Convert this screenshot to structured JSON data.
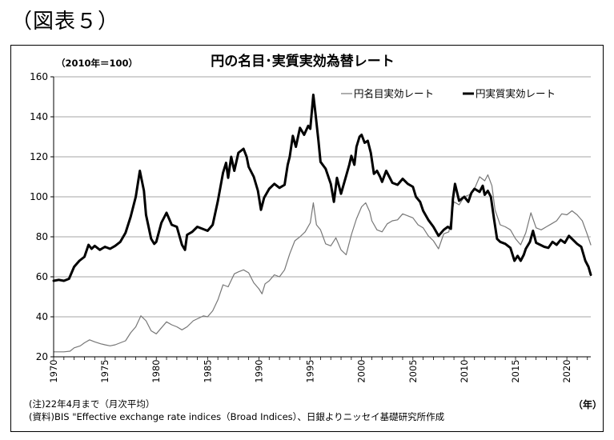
{
  "figure_label": "（図表５）",
  "notes": [
    "(注)22年4月まで（月次平均）",
    "(資料)BIS \"Effective exchange rate indices（Broad Indices）、日銀よりニッセイ基礎研究所作成"
  ],
  "chart_data": {
    "type": "line",
    "title": "円の名目･実質実効為替レート",
    "subtitle": "（2010年＝100）",
    "xlabel": "（年）",
    "ylabel": "",
    "xlim": [
      1970,
      2022.33
    ],
    "ylim": [
      20,
      160
    ],
    "x_ticks": [
      1970,
      1975,
      1980,
      1985,
      1990,
      1995,
      2000,
      2005,
      2010,
      2015,
      2020
    ],
    "y_ticks": [
      20,
      40,
      60,
      80,
      100,
      120,
      140,
      160
    ],
    "grid": "horizontal",
    "legend_position": "top-right",
    "series": [
      {
        "name": "円名目実効レート",
        "color": "#777777",
        "width": 1.2,
        "points": [
          [
            1970.0,
            22.5
          ],
          [
            1971.0,
            22.5
          ],
          [
            1971.6,
            22.8
          ],
          [
            1972.0,
            24.5
          ],
          [
            1972.6,
            25.5
          ],
          [
            1973.0,
            27.0
          ],
          [
            1973.5,
            28.5
          ],
          [
            1974.0,
            27.5
          ],
          [
            1974.6,
            26.5
          ],
          [
            1975.0,
            26.0
          ],
          [
            1975.5,
            25.5
          ],
          [
            1976.0,
            26.0
          ],
          [
            1976.5,
            27.0
          ],
          [
            1977.0,
            28.0
          ],
          [
            1977.5,
            32.0
          ],
          [
            1978.0,
            35.0
          ],
          [
            1978.5,
            40.5
          ],
          [
            1979.0,
            38.0
          ],
          [
            1979.5,
            33.0
          ],
          [
            1980.0,
            31.5
          ],
          [
            1980.5,
            34.5
          ],
          [
            1981.0,
            37.5
          ],
          [
            1981.5,
            36.0
          ],
          [
            1982.0,
            35.0
          ],
          [
            1982.5,
            33.5
          ],
          [
            1983.0,
            35.0
          ],
          [
            1983.6,
            38.0
          ],
          [
            1984.0,
            39.0
          ],
          [
            1984.6,
            40.5
          ],
          [
            1985.0,
            40.0
          ],
          [
            1985.5,
            43.0
          ],
          [
            1986.0,
            48.5
          ],
          [
            1986.5,
            56.0
          ],
          [
            1987.0,
            55.0
          ],
          [
            1987.6,
            61.5
          ],
          [
            1988.0,
            62.5
          ],
          [
            1988.5,
            63.5
          ],
          [
            1989.0,
            62.0
          ],
          [
            1989.5,
            57.0
          ],
          [
            1990.0,
            54.0
          ],
          [
            1990.3,
            51.5
          ],
          [
            1990.6,
            56.5
          ],
          [
            1991.0,
            58.0
          ],
          [
            1991.5,
            61.0
          ],
          [
            1992.0,
            60.0
          ],
          [
            1992.5,
            63.5
          ],
          [
            1993.0,
            71.5
          ],
          [
            1993.5,
            78.0
          ],
          [
            1994.0,
            80.0
          ],
          [
            1994.5,
            82.5
          ],
          [
            1995.0,
            87.0
          ],
          [
            1995.3,
            97.0
          ],
          [
            1995.6,
            86.0
          ],
          [
            1996.0,
            83.5
          ],
          [
            1996.5,
            76.5
          ],
          [
            1997.0,
            75.5
          ],
          [
            1997.5,
            79.5
          ],
          [
            1998.0,
            73.5
          ],
          [
            1998.5,
            71.0
          ],
          [
            1999.0,
            81.0
          ],
          [
            1999.5,
            89.0
          ],
          [
            2000.0,
            95.0
          ],
          [
            2000.4,
            97.0
          ],
          [
            2000.8,
            92.5
          ],
          [
            2001.0,
            88.0
          ],
          [
            2001.5,
            83.5
          ],
          [
            2002.0,
            82.5
          ],
          [
            2002.5,
            86.5
          ],
          [
            2003.0,
            88.0
          ],
          [
            2003.5,
            88.5
          ],
          [
            2004.0,
            91.5
          ],
          [
            2004.5,
            90.5
          ],
          [
            2005.0,
            89.5
          ],
          [
            2005.5,
            86.0
          ],
          [
            2006.0,
            84.5
          ],
          [
            2006.5,
            80.5
          ],
          [
            2007.0,
            78.0
          ],
          [
            2007.5,
            74.0
          ],
          [
            2008.0,
            81.5
          ],
          [
            2008.5,
            82.5
          ],
          [
            2009.0,
            97.5
          ],
          [
            2009.5,
            96.0
          ],
          [
            2010.0,
            100.0
          ],
          [
            2010.5,
            101.0
          ],
          [
            2011.0,
            104.0
          ],
          [
            2011.5,
            110.0
          ],
          [
            2012.0,
            108.0
          ],
          [
            2012.3,
            111.0
          ],
          [
            2012.7,
            105.5
          ],
          [
            2013.0,
            93.5
          ],
          [
            2013.5,
            86.0
          ],
          [
            2014.0,
            85.0
          ],
          [
            2014.5,
            83.5
          ],
          [
            2015.0,
            79.0
          ],
          [
            2015.5,
            76.0
          ],
          [
            2016.0,
            82.0
          ],
          [
            2016.5,
            92.0
          ],
          [
            2017.0,
            84.5
          ],
          [
            2017.5,
            83.5
          ],
          [
            2018.0,
            85.0
          ],
          [
            2018.5,
            86.5
          ],
          [
            2019.0,
            88.0
          ],
          [
            2019.5,
            91.5
          ],
          [
            2020.0,
            91.0
          ],
          [
            2020.5,
            93.0
          ],
          [
            2021.0,
            91.0
          ],
          [
            2021.5,
            88.0
          ],
          [
            2022.0,
            81.0
          ],
          [
            2022.33,
            76.0
          ]
        ]
      },
      {
        "name": "円実質実効レート",
        "color": "#000000",
        "width": 3,
        "points": [
          [
            1970.0,
            58.0
          ],
          [
            1970.5,
            58.5
          ],
          [
            1971.0,
            58.0
          ],
          [
            1971.5,
            59.0
          ],
          [
            1972.0,
            65.0
          ],
          [
            1972.5,
            68.0
          ],
          [
            1973.0,
            70.0
          ],
          [
            1973.4,
            76.0
          ],
          [
            1973.7,
            74.0
          ],
          [
            1974.0,
            75.5
          ],
          [
            1974.5,
            73.5
          ],
          [
            1975.0,
            75.0
          ],
          [
            1975.5,
            74.0
          ],
          [
            1976.0,
            75.5
          ],
          [
            1976.5,
            77.5
          ],
          [
            1977.0,
            82.0
          ],
          [
            1977.5,
            90.0
          ],
          [
            1978.0,
            100.0
          ],
          [
            1978.4,
            113.0
          ],
          [
            1978.8,
            103.0
          ],
          [
            1979.0,
            91.0
          ],
          [
            1979.5,
            79.0
          ],
          [
            1979.8,
            76.5
          ],
          [
            1980.0,
            77.5
          ],
          [
            1980.5,
            87.0
          ],
          [
            1981.0,
            92.0
          ],
          [
            1981.5,
            86.0
          ],
          [
            1982.0,
            85.0
          ],
          [
            1982.5,
            76.0
          ],
          [
            1982.8,
            73.5
          ],
          [
            1983.0,
            81.0
          ],
          [
            1983.5,
            82.5
          ],
          [
            1984.0,
            85.0
          ],
          [
            1984.5,
            84.0
          ],
          [
            1985.0,
            83.0
          ],
          [
            1985.5,
            86.0
          ],
          [
            1986.0,
            98.0
          ],
          [
            1986.5,
            112.0
          ],
          [
            1986.8,
            117.0
          ],
          [
            1987.0,
            109.5
          ],
          [
            1987.3,
            120.0
          ],
          [
            1987.6,
            113.0
          ],
          [
            1988.0,
            122.0
          ],
          [
            1988.5,
            124.0
          ],
          [
            1988.8,
            120.0
          ],
          [
            1989.0,
            115.0
          ],
          [
            1989.5,
            110.0
          ],
          [
            1989.9,
            103.0
          ],
          [
            1990.2,
            93.5
          ],
          [
            1990.5,
            99.5
          ],
          [
            1991.0,
            104.0
          ],
          [
            1991.5,
            106.5
          ],
          [
            1992.0,
            104.5
          ],
          [
            1992.5,
            106.0
          ],
          [
            1992.8,
            116.0
          ],
          [
            1993.0,
            120.0
          ],
          [
            1993.3,
            130.5
          ],
          [
            1993.6,
            125.0
          ],
          [
            1994.0,
            134.5
          ],
          [
            1994.4,
            131.0
          ],
          [
            1994.8,
            135.5
          ],
          [
            1995.0,
            134.0
          ],
          [
            1995.3,
            151.0
          ],
          [
            1995.5,
            142.0
          ],
          [
            1995.8,
            128.0
          ],
          [
            1996.0,
            117.5
          ],
          [
            1996.5,
            114.0
          ],
          [
            1997.0,
            106.5
          ],
          [
            1997.3,
            97.5
          ],
          [
            1997.6,
            109.5
          ],
          [
            1998.0,
            101.5
          ],
          [
            1998.5,
            110.5
          ],
          [
            1998.8,
            116.0
          ],
          [
            1999.0,
            120.5
          ],
          [
            1999.3,
            116.0
          ],
          [
            1999.5,
            125.0
          ],
          [
            1999.8,
            130.0
          ],
          [
            2000.0,
            131.0
          ],
          [
            2000.3,
            127.0
          ],
          [
            2000.6,
            128.0
          ],
          [
            2000.9,
            122.0
          ],
          [
            2001.2,
            111.5
          ],
          [
            2001.5,
            113.0
          ],
          [
            2001.8,
            110.0
          ],
          [
            2002.0,
            107.5
          ],
          [
            2002.4,
            113.0
          ],
          [
            2002.8,
            109.0
          ],
          [
            2003.0,
            107.0
          ],
          [
            2003.5,
            106.0
          ],
          [
            2004.0,
            109.0
          ],
          [
            2004.5,
            106.5
          ],
          [
            2005.0,
            105.0
          ],
          [
            2005.3,
            100.0
          ],
          [
            2005.7,
            97.5
          ],
          [
            2006.0,
            93.0
          ],
          [
            2006.5,
            88.5
          ],
          [
            2007.0,
            85.0
          ],
          [
            2007.5,
            80.5
          ],
          [
            2008.0,
            83.5
          ],
          [
            2008.4,
            85.0
          ],
          [
            2008.7,
            84.0
          ],
          [
            2008.9,
            99.0
          ],
          [
            2009.1,
            106.5
          ],
          [
            2009.5,
            98.0
          ],
          [
            2010.0,
            100.0
          ],
          [
            2010.4,
            97.5
          ],
          [
            2010.7,
            102.0
          ],
          [
            2011.0,
            104.0
          ],
          [
            2011.5,
            102.5
          ],
          [
            2011.8,
            105.5
          ],
          [
            2012.0,
            101.0
          ],
          [
            2012.3,
            103.0
          ],
          [
            2012.6,
            100.0
          ],
          [
            2012.9,
            89.0
          ],
          [
            2013.2,
            79.0
          ],
          [
            2013.5,
            77.5
          ],
          [
            2014.0,
            76.5
          ],
          [
            2014.5,
            74.5
          ],
          [
            2014.9,
            68.0
          ],
          [
            2015.2,
            70.5
          ],
          [
            2015.5,
            68.0
          ],
          [
            2015.8,
            71.0
          ],
          [
            2016.0,
            74.0
          ],
          [
            2016.4,
            77.5
          ],
          [
            2016.7,
            83.0
          ],
          [
            2017.0,
            77.0
          ],
          [
            2017.4,
            76.0
          ],
          [
            2017.8,
            75.0
          ],
          [
            2018.2,
            74.5
          ],
          [
            2018.6,
            77.5
          ],
          [
            2019.0,
            76.0
          ],
          [
            2019.4,
            78.5
          ],
          [
            2019.8,
            77.0
          ],
          [
            2020.2,
            80.5
          ],
          [
            2020.6,
            78.5
          ],
          [
            2021.0,
            76.5
          ],
          [
            2021.4,
            75.0
          ],
          [
            2021.8,
            68.0
          ],
          [
            2022.1,
            65.0
          ],
          [
            2022.33,
            61.0
          ]
        ]
      }
    ]
  }
}
